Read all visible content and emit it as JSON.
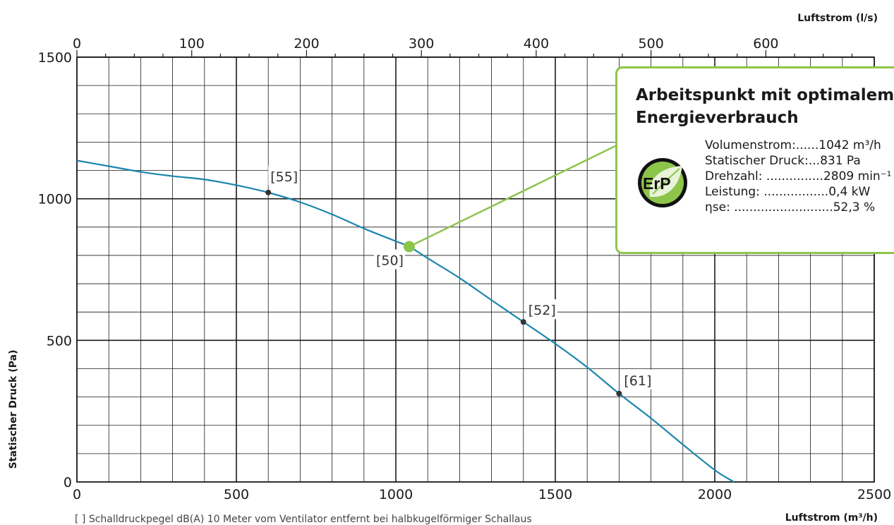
{
  "chart_data": {
    "type": "line",
    "xlabel": "Luftstrom (m³/h)",
    "x2label": "Luftstrom (l/s)",
    "ylabel": "Statischer Druck (Pa)",
    "xlim": [
      0,
      2500
    ],
    "ylim": [
      0,
      1500
    ],
    "x2lim": [
      0,
      694.4
    ],
    "x_ticks": [
      0,
      500,
      1000,
      1500,
      2000,
      2500
    ],
    "x2_ticks": [
      0,
      100,
      200,
      300,
      400,
      500,
      600
    ],
    "y_ticks": [
      0,
      500,
      1000,
      1500
    ],
    "grid": true,
    "series": [
      {
        "color": "#1a86ad",
        "x": [
          0,
          100,
          200,
          300,
          400,
          500,
          600,
          700,
          800,
          900,
          1000,
          1042,
          1100,
          1200,
          1300,
          1400,
          1500,
          1600,
          1700,
          1800,
          1900,
          2000,
          2060
        ],
        "y": [
          1135,
          1115,
          1095,
          1080,
          1068,
          1048,
          1022,
          988,
          945,
          895,
          850,
          831,
          790,
          720,
          642,
          565,
          488,
          405,
          312,
          225,
          132,
          42,
          0
        ]
      }
    ],
    "points": [
      {
        "x": 600,
        "y": 1022,
        "label": "[55]"
      },
      {
        "x": 1042,
        "y": 831,
        "label": "[50]"
      },
      {
        "x": 1400,
        "y": 565,
        "label": "[52]"
      },
      {
        "x": 1700,
        "y": 312,
        "label": "[61]"
      }
    ],
    "operating_point": {
      "x": 1042,
      "y": 831,
      "color": "#8dc54b"
    }
  },
  "erp_box": {
    "title": "Arbeitspunkt mit optimalem Energieverbrauch",
    "logo_text": "ErP",
    "rows": [
      {
        "label": "Volumenstrom:......",
        "value": "1042 m³/h"
      },
      {
        "label": "Statischer Druck:...",
        "value": "831 Pa"
      },
      {
        "label": "Drehzahl: ...............",
        "value": "2809 min⁻¹"
      },
      {
        "label": "Leistung: .................",
        "value": "0,4 kW"
      },
      {
        "label": "ηse: ..........................",
        "value": "52,3 %"
      }
    ]
  },
  "footnote": "[ ]  Schalldruckpegel dB(A) 10 Meter vom Ventilator entfernt bei halbkugelförmiger Schallaus",
  "colors": {
    "curve": "#1a86ad",
    "accent": "#8dc54b",
    "grid": "#1a1a1a"
  }
}
